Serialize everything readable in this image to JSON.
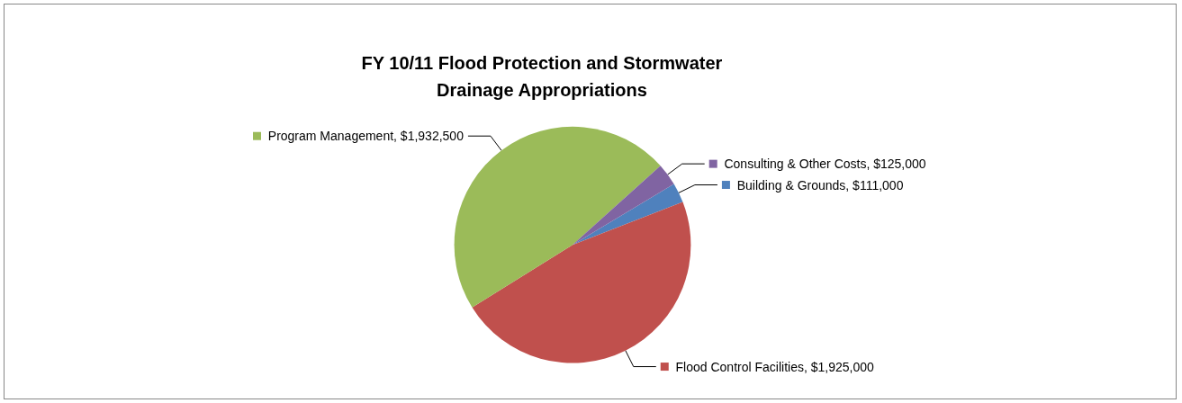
{
  "chart_data": {
    "type": "pie",
    "title": "FY 10/11 Flood Protection and Stormwater\nDrainage Appropriations",
    "categories": [
      "Building & Grounds",
      "Flood Control Facilities",
      "Program Management",
      "Consulting & Other Costs"
    ],
    "values": [
      111000,
      1925000,
      1932500,
      125000
    ],
    "value_labels": [
      "$111,000",
      "$1,925,000",
      "$1,932,500",
      "$125,000"
    ],
    "colors": [
      "#4f81bd",
      "#c0504d",
      "#9bbb59",
      "#8064a2"
    ],
    "legend": "right"
  }
}
